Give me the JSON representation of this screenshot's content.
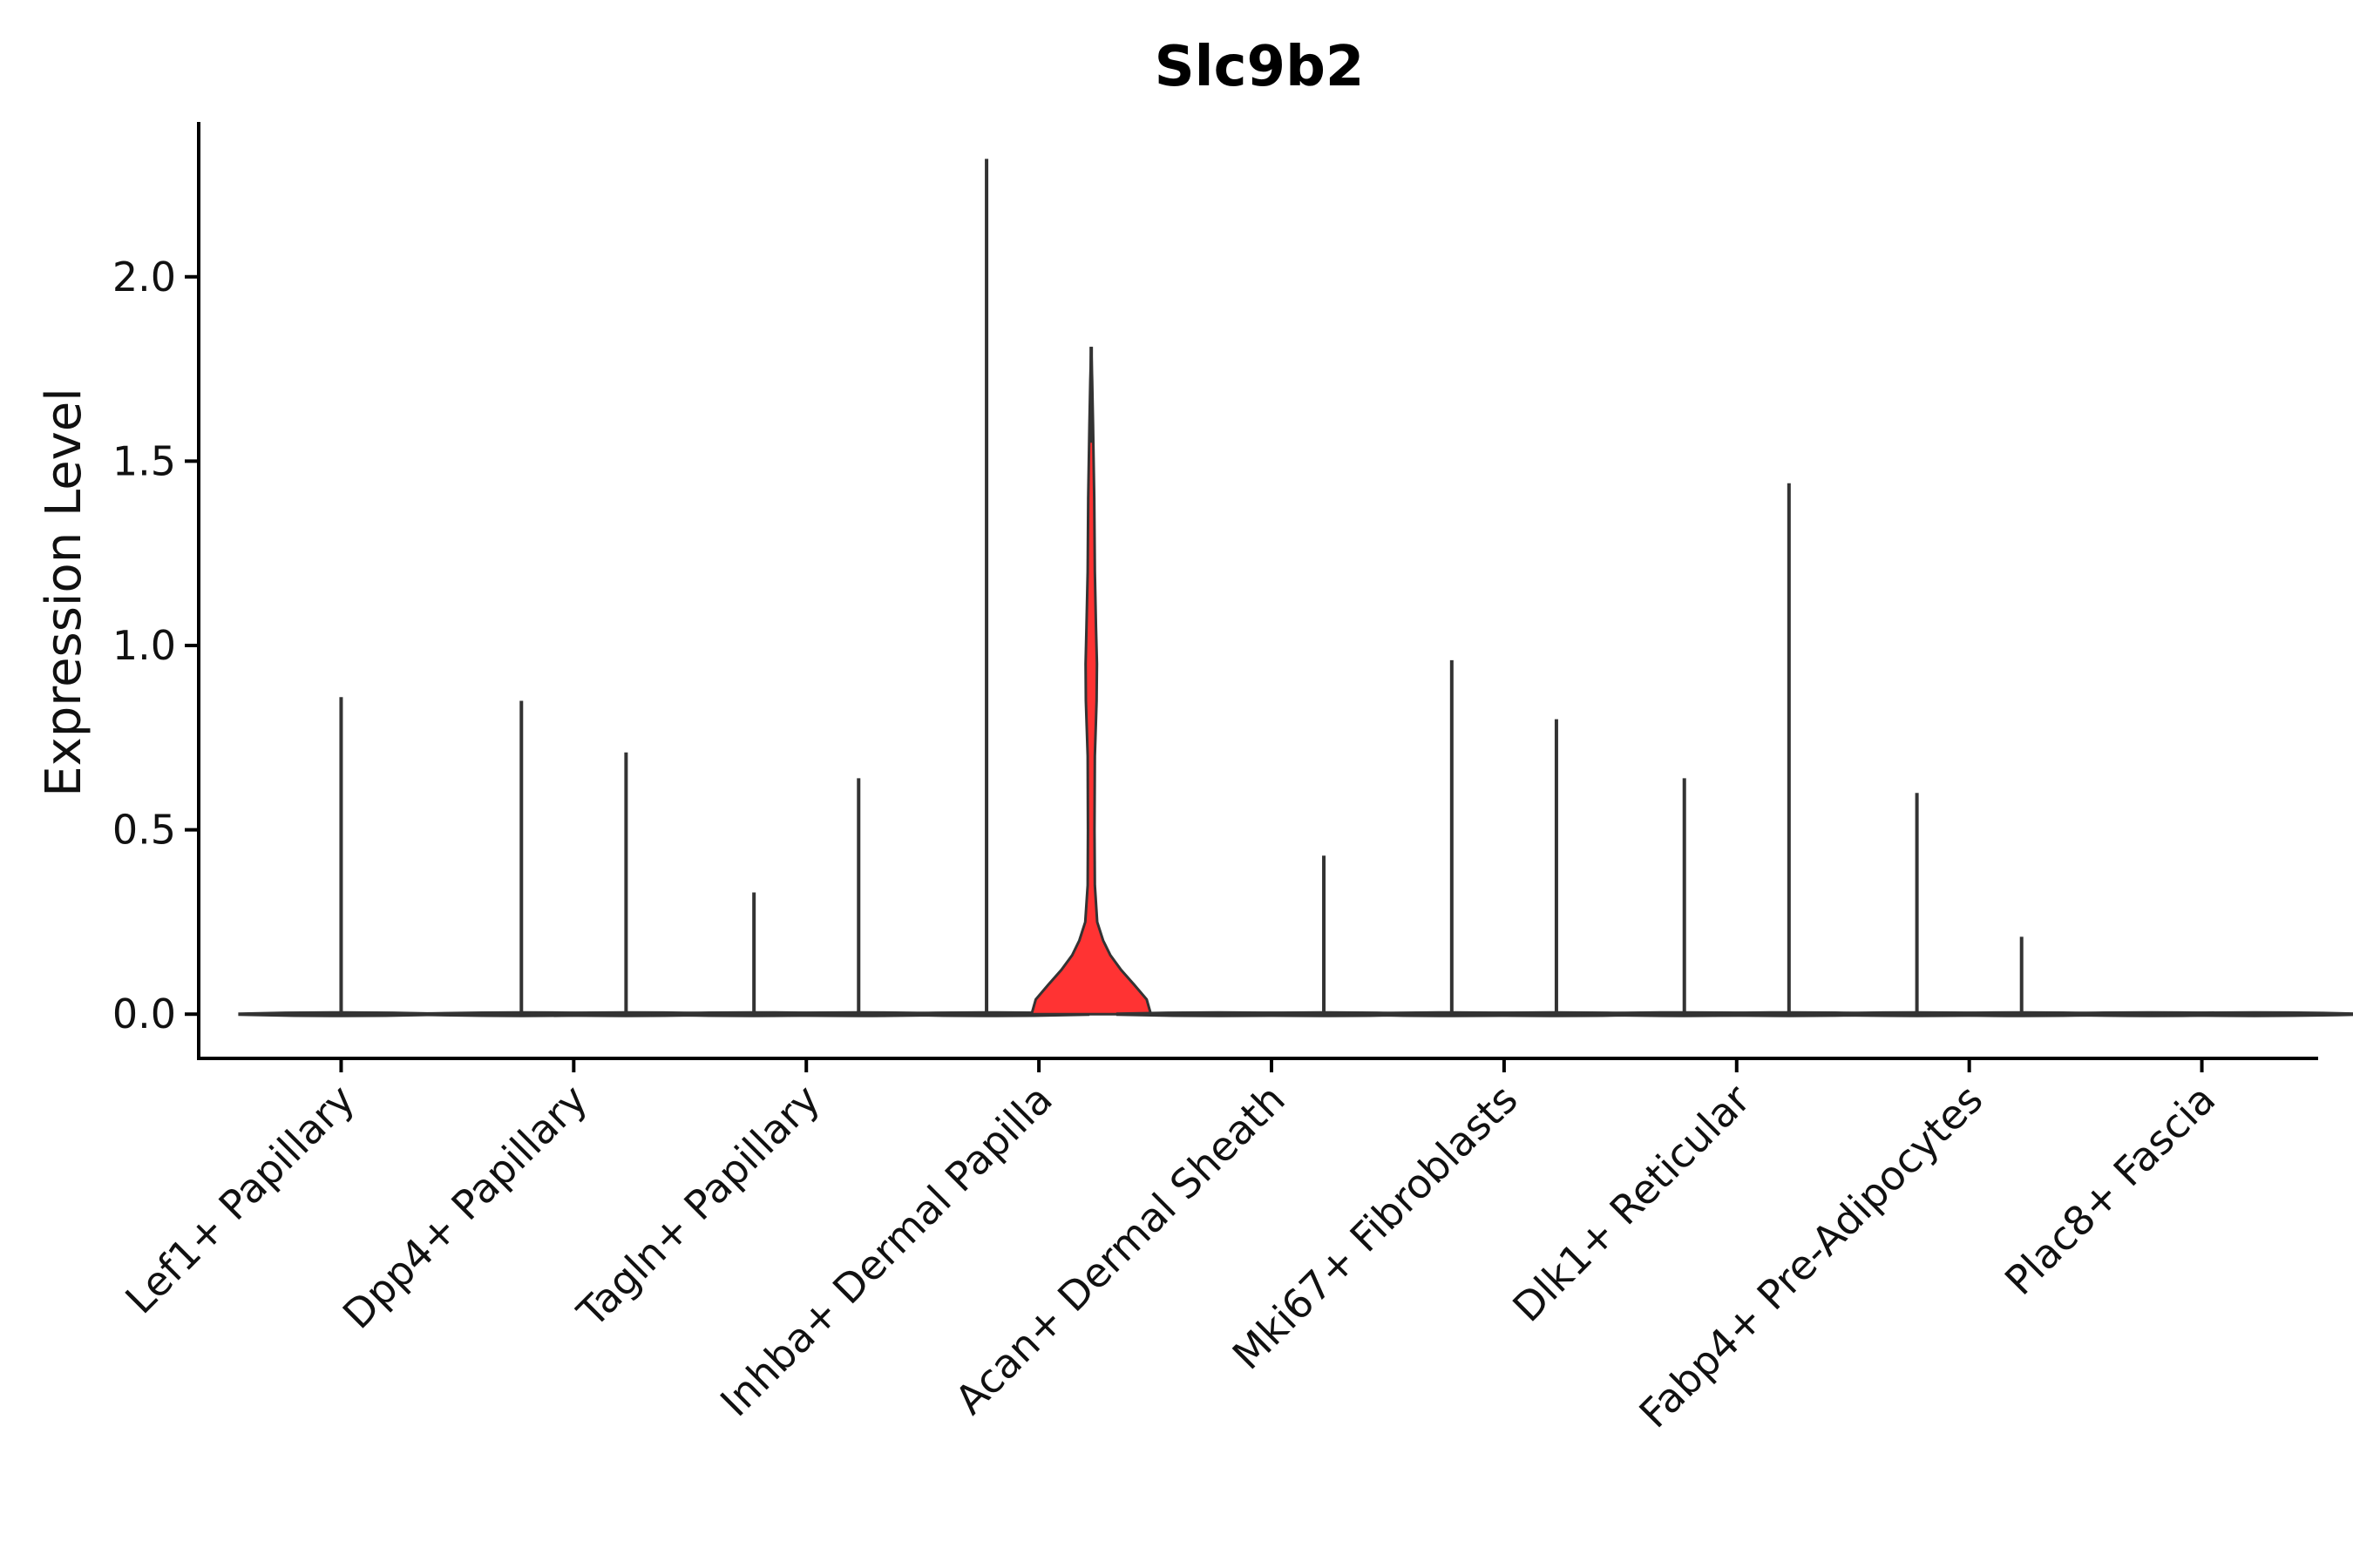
{
  "chart_data": {
    "type": "violin",
    "title": "Slc9b2",
    "xlabel": "",
    "ylabel": "Expression Level",
    "ylim": [
      -0.12,
      2.42
    ],
    "yticks": [
      "0.0",
      "0.5",
      "1.0",
      "1.5",
      "2.0"
    ],
    "ytick_values": [
      0.0,
      0.5,
      1.0,
      1.5,
      2.0
    ],
    "categories": [
      "Lef1+ Papillary",
      "Dpp4+ Papillary",
      "Tagln+ Papillary",
      "Inhba+ Dermal Papilla",
      "Acan+ Dermal Sheath",
      "Mki67+ Fibroblasts",
      "Dlk1+ Reticular",
      "Fabp4+ Pre-Adipocytes",
      "Plac8+ Fascia"
    ],
    "series": [
      {
        "name": "Lef1+ Papillary",
        "min": 0.0,
        "max": 0.86,
        "color": "#ffffff"
      },
      {
        "name": "Dpp4+ Papillary",
        "min": 0.0,
        "max": 0.85,
        "color": "#ffffff"
      },
      {
        "name": "Dpp4+ Papillary",
        "min": 0.0,
        "max": 0.71,
        "color": "#ffffff"
      },
      {
        "name": "Tagln+ Papillary",
        "min": 0.0,
        "max": 0.33,
        "color": "#ffffff"
      },
      {
        "name": "Tagln+ Papillary",
        "min": 0.0,
        "max": 0.64,
        "color": "#ffffff"
      },
      {
        "name": "Inhba+ Dermal Papilla",
        "min": 0.0,
        "max": 2.32,
        "color": "#ffffff"
      },
      {
        "name": "Inhba+ Dermal Papilla",
        "min": 0.0,
        "max": 1.81,
        "color": "#ff3333"
      },
      {
        "name": "Acan+ Dermal Sheath",
        "min": 0.0,
        "max": 0.0,
        "color": "#ffffff"
      },
      {
        "name": "Acan+ Dermal Sheath",
        "min": 0.0,
        "max": 0.43,
        "color": "#ffffff"
      },
      {
        "name": "Mki67+ Fibroblasts",
        "min": 0.0,
        "max": 0.96,
        "color": "#ffffff"
      },
      {
        "name": "Mki67+ Fibroblasts",
        "min": 0.0,
        "max": 0.8,
        "color": "#ffffff"
      },
      {
        "name": "Dlk1+ Reticular",
        "min": 0.0,
        "max": 0.64,
        "color": "#ffffff"
      },
      {
        "name": "Dlk1+ Reticular",
        "min": 0.0,
        "max": 1.44,
        "color": "#ffffff"
      },
      {
        "name": "Fabp4+ Pre-Adipocytes",
        "min": 0.0,
        "max": 0.6,
        "color": "#ffffff"
      },
      {
        "name": "Fabp4+ Pre-Adipocytes",
        "min": 0.0,
        "max": 0.21,
        "color": "#ffffff"
      },
      {
        "name": "Plac8+ Fascia",
        "min": 0.0,
        "max": 0.0,
        "color": "#ffffff"
      },
      {
        "name": "Plac8+ Fascia",
        "min": 0.0,
        "max": 0.0,
        "color": "#ffffff"
      }
    ],
    "highlight_color": "#ff3333",
    "outline_color": "#333333"
  }
}
